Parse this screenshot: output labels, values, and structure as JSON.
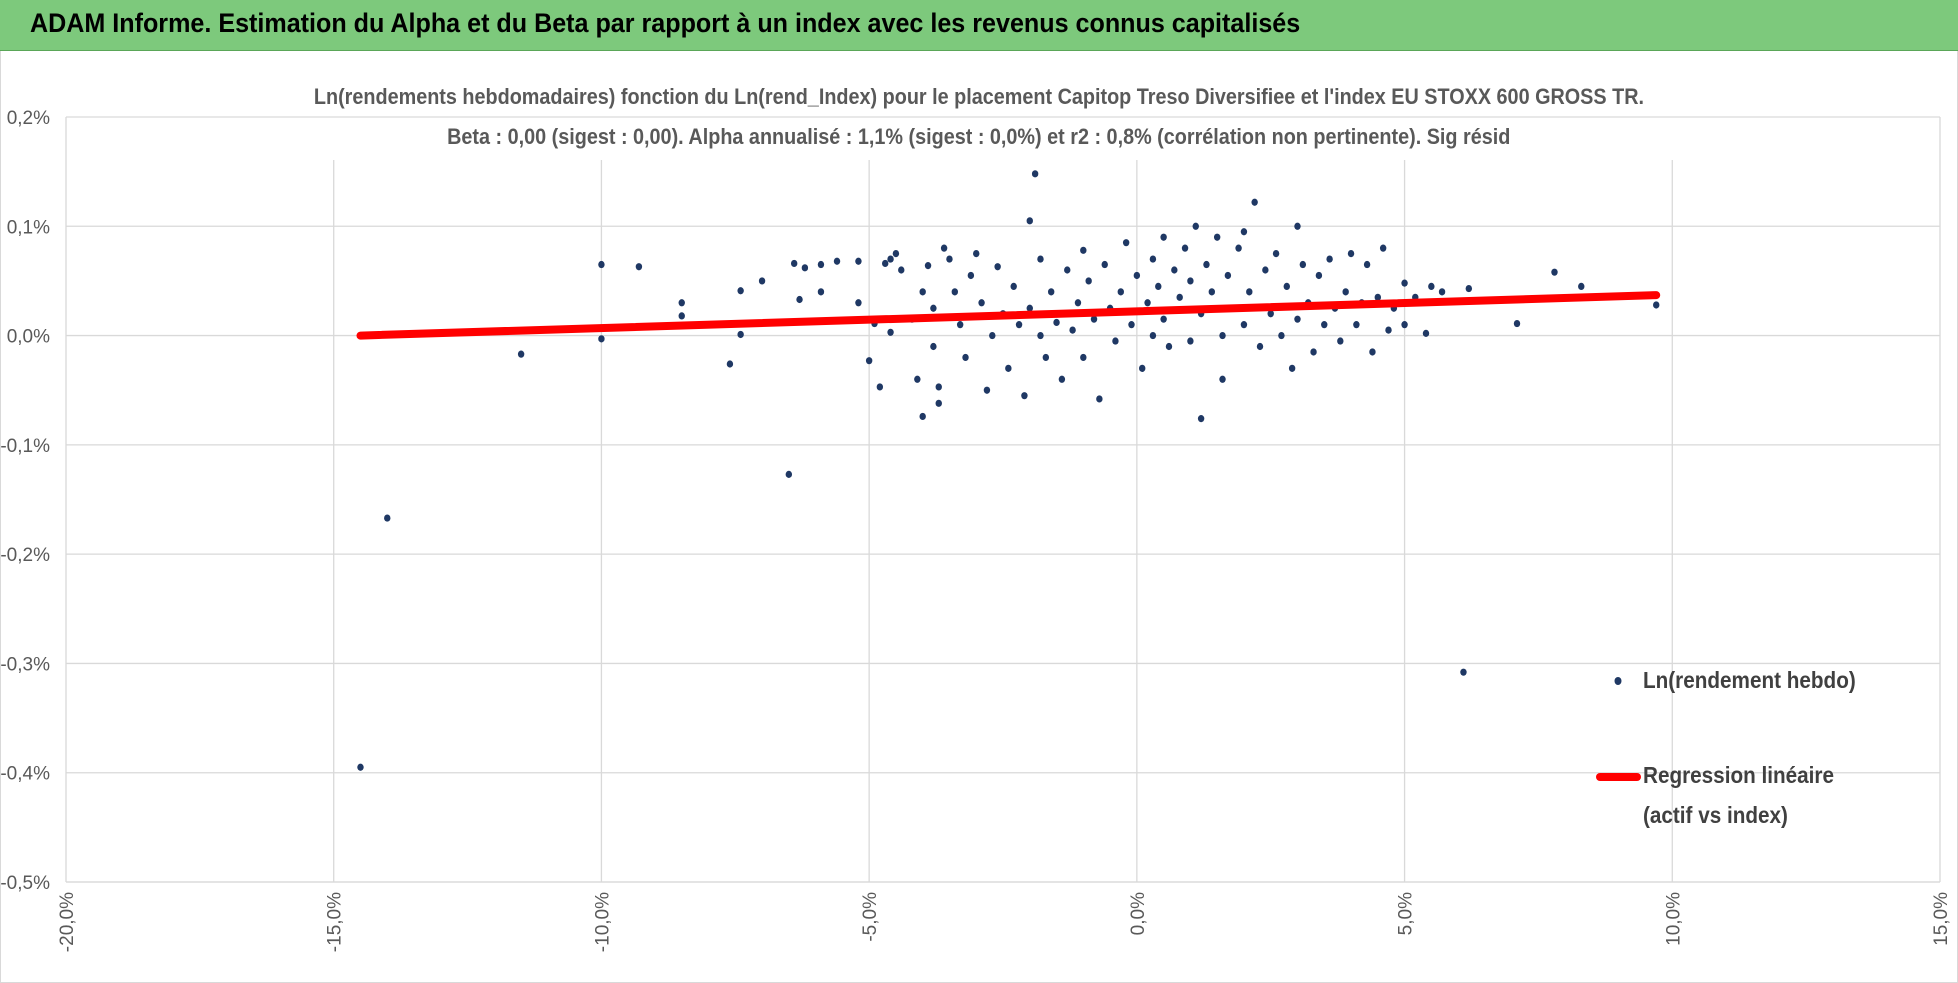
{
  "header": {
    "title": "ADAM Informe. Estimation du Alpha et du Beta par rapport à un index avec les revenus connus capitalisés"
  },
  "colors": {
    "header_bg": "#7dc97c",
    "points": "#1f3864",
    "regression": "#ff0000",
    "grid": "#d9d9d9",
    "text": "#595959"
  },
  "chart_data": {
    "type": "scatter",
    "title_line1": "Ln(rendements hebdomadaires) fonction du Ln(rend_Index) pour le placement Capitop Treso Diversifiee et l'index EU STOXX 600 GROSS TR.",
    "title_line2": "Beta : 0,00 (sigest : 0,00).  Alpha annualisé : 1,1% (sigest : 0,0%) et r2 : 0,8% (corrélation non pertinente). Sig résid",
    "xlim": [
      -20,
      15
    ],
    "ylim": [
      -0.5,
      0.2
    ],
    "x_ticks": [
      "-20,0%",
      "-15,0%",
      "-10,0%",
      "-5,0%",
      "0,0%",
      "5,0%",
      "10,0%",
      "15,0%"
    ],
    "y_ticks": [
      "0,2%",
      "0,1%",
      "0,0%",
      "-0,1%",
      "-0,2%",
      "-0,3%",
      "-0,4%",
      "-0,5%"
    ],
    "grid": true,
    "legend_position": "right",
    "series": [
      {
        "name": "Ln(rendement hebdo)",
        "kind": "points",
        "points": [
          [
            -14.5,
            -0.395
          ],
          [
            -14.0,
            -0.167
          ],
          [
            -11.5,
            -0.017
          ],
          [
            -10.0,
            0.065
          ],
          [
            -10.0,
            -0.003
          ],
          [
            -9.3,
            0.063
          ],
          [
            -8.5,
            0.03
          ],
          [
            -8.5,
            0.018
          ],
          [
            -7.6,
            -0.026
          ],
          [
            -7.4,
            0.041
          ],
          [
            -7.4,
            0.001
          ],
          [
            -7.0,
            0.05
          ],
          [
            -6.5,
            -0.127
          ],
          [
            -6.4,
            0.066
          ],
          [
            -6.3,
            0.033
          ],
          [
            -6.2,
            0.062
          ],
          [
            -5.9,
            0.04
          ],
          [
            -5.9,
            0.065
          ],
          [
            -5.6,
            0.068
          ],
          [
            -5.2,
            0.068
          ],
          [
            -5.2,
            0.03
          ],
          [
            -5.0,
            -0.023
          ],
          [
            -4.9,
            0.011
          ],
          [
            -4.8,
            -0.047
          ],
          [
            -4.7,
            0.066
          ],
          [
            -4.6,
            0.07
          ],
          [
            -4.6,
            0.003
          ],
          [
            -4.5,
            0.075
          ],
          [
            -4.4,
            0.06
          ],
          [
            -4.2,
            0.015
          ],
          [
            -4.1,
            -0.04
          ],
          [
            -4.0,
            0.04
          ],
          [
            -4.0,
            -0.074
          ],
          [
            -3.9,
            0.064
          ],
          [
            -3.8,
            -0.01
          ],
          [
            -3.8,
            0.025
          ],
          [
            -3.7,
            -0.047
          ],
          [
            -3.7,
            -0.062
          ],
          [
            -3.6,
            0.08
          ],
          [
            -3.5,
            0.07
          ],
          [
            -3.4,
            0.04
          ],
          [
            -3.3,
            0.01
          ],
          [
            -3.2,
            -0.02
          ],
          [
            -3.1,
            0.055
          ],
          [
            -3.0,
            0.075
          ],
          [
            -2.9,
            0.03
          ],
          [
            -2.8,
            -0.05
          ],
          [
            -2.7,
            0.0
          ],
          [
            -2.6,
            0.063
          ],
          [
            -2.5,
            0.02
          ],
          [
            -2.4,
            -0.03
          ],
          [
            -2.3,
            0.045
          ],
          [
            -2.2,
            0.01
          ],
          [
            -2.1,
            -0.055
          ],
          [
            -2.0,
            0.105
          ],
          [
            -2.0,
            0.025
          ],
          [
            -1.9,
            0.148
          ],
          [
            -1.8,
            0.0
          ],
          [
            -1.8,
            0.07
          ],
          [
            -1.7,
            -0.02
          ],
          [
            -1.6,
            0.04
          ],
          [
            -1.5,
            0.012
          ],
          [
            -1.4,
            -0.04
          ],
          [
            -1.3,
            0.06
          ],
          [
            -1.2,
            0.005
          ],
          [
            -1.1,
            0.03
          ],
          [
            -1.0,
            0.078
          ],
          [
            -1.0,
            -0.02
          ],
          [
            -0.9,
            0.05
          ],
          [
            -0.8,
            0.015
          ],
          [
            -0.7,
            -0.058
          ],
          [
            -0.6,
            0.065
          ],
          [
            -0.5,
            0.025
          ],
          [
            -0.4,
            -0.005
          ],
          [
            -0.3,
            0.04
          ],
          [
            -0.2,
            0.085
          ],
          [
            -0.1,
            0.01
          ],
          [
            0.0,
            0.055
          ],
          [
            0.1,
            -0.03
          ],
          [
            0.2,
            0.03
          ],
          [
            0.3,
            0.07
          ],
          [
            0.3,
            0.0
          ],
          [
            0.4,
            0.045
          ],
          [
            0.5,
            0.09
          ],
          [
            0.5,
            0.015
          ],
          [
            0.6,
            -0.01
          ],
          [
            0.7,
            0.06
          ],
          [
            0.8,
            0.035
          ],
          [
            0.9,
            0.08
          ],
          [
            1.0,
            -0.005
          ],
          [
            1.0,
            0.05
          ],
          [
            1.1,
            0.1
          ],
          [
            1.2,
            -0.076
          ],
          [
            1.2,
            0.02
          ],
          [
            1.3,
            0.065
          ],
          [
            1.4,
            0.04
          ],
          [
            1.5,
            0.09
          ],
          [
            1.6,
            0.0
          ],
          [
            1.6,
            -0.04
          ],
          [
            1.7,
            0.055
          ],
          [
            1.8,
            0.025
          ],
          [
            1.9,
            0.08
          ],
          [
            2.0,
            0.01
          ],
          [
            2.0,
            0.095
          ],
          [
            2.1,
            0.04
          ],
          [
            2.2,
            0.122
          ],
          [
            2.3,
            -0.01
          ],
          [
            2.4,
            0.06
          ],
          [
            2.5,
            0.02
          ],
          [
            2.6,
            0.075
          ],
          [
            2.7,
            0.0
          ],
          [
            2.8,
            0.045
          ],
          [
            2.9,
            -0.03
          ],
          [
            3.0,
            0.1
          ],
          [
            3.0,
            0.015
          ],
          [
            3.1,
            0.065
          ],
          [
            3.2,
            0.03
          ],
          [
            3.3,
            -0.015
          ],
          [
            3.4,
            0.055
          ],
          [
            3.5,
            0.01
          ],
          [
            3.6,
            0.07
          ],
          [
            3.7,
            0.025
          ],
          [
            3.8,
            -0.005
          ],
          [
            3.9,
            0.04
          ],
          [
            4.0,
            0.075
          ],
          [
            4.1,
            0.01
          ],
          [
            4.2,
            0.03
          ],
          [
            4.3,
            0.065
          ],
          [
            4.4,
            -0.015
          ],
          [
            4.5,
            0.035
          ],
          [
            4.6,
            0.08
          ],
          [
            4.7,
            0.005
          ],
          [
            4.8,
            0.025
          ],
          [
            5.0,
            0.048
          ],
          [
            5.0,
            0.01
          ],
          [
            5.2,
            0.035
          ],
          [
            5.4,
            0.002
          ],
          [
            5.5,
            0.045
          ],
          [
            5.7,
            0.04
          ],
          [
            6.1,
            -0.308
          ],
          [
            6.2,
            0.043
          ],
          [
            7.1,
            0.011
          ],
          [
            7.8,
            0.058
          ],
          [
            8.3,
            0.045
          ],
          [
            9.7,
            0.028
          ]
        ]
      },
      {
        "name": "Regression linéaire",
        "name_line2": "(actif vs index)",
        "kind": "line",
        "points": [
          [
            -14.5,
            0.0
          ],
          [
            9.7,
            0.037
          ]
        ]
      }
    ]
  }
}
